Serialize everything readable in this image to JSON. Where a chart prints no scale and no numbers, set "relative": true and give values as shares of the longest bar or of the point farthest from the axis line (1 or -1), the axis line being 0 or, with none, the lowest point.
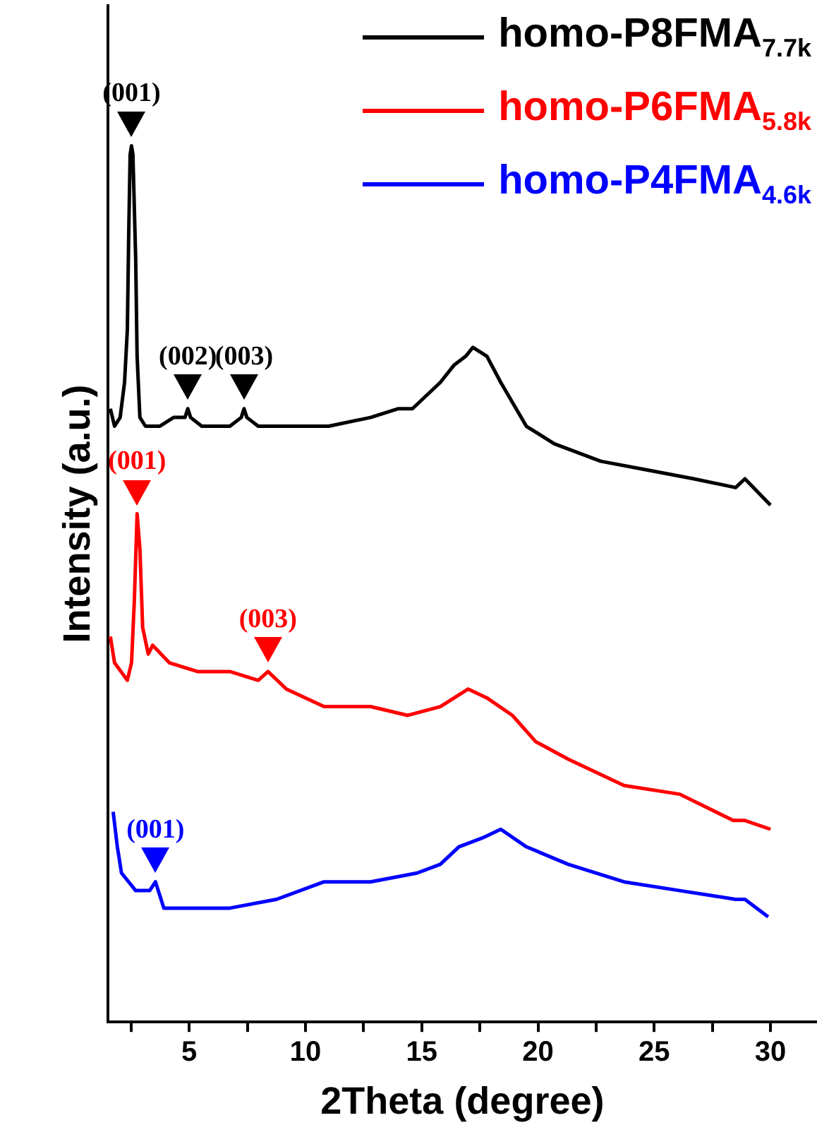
{
  "chart_data": {
    "type": "line",
    "relative": true,
    "xlabel": "2Theta (degree)",
    "ylabel": "Intensity (a.u.)",
    "xlim": [
      1.5,
      32
    ],
    "xticks": [
      {
        "value": 2.5,
        "label": null
      },
      5,
      {
        "value": 7.5,
        "label": null
      },
      10,
      {
        "value": 12.5,
        "label": null
      },
      15,
      {
        "value": 17.5,
        "label": null
      },
      20,
      {
        "value": 22.5,
        "label": null
      },
      25,
      {
        "value": 27.5,
        "label": null
      },
      30
    ],
    "grid": false,
    "legend": "top right",
    "marker": "none",
    "line_style": "solid",
    "series": [
      {
        "name": "homo-P8FMA$_{7.7k}$",
        "color": "#000000",
        "x": [
          1.61,
          1.79,
          2.03,
          2.22,
          2.34,
          2.4,
          2.46,
          2.52,
          2.58,
          2.7,
          2.76,
          2.88,
          3.12,
          3.73,
          4.33,
          4.82,
          4.94,
          5.06,
          5.54,
          6.75,
          7.24,
          7.36,
          7.48,
          7.97,
          9.18,
          11.0,
          12.8,
          14.0,
          14.6,
          15.8,
          16.4,
          16.9,
          17.2,
          17.8,
          18.4,
          19.5,
          20.7,
          22.7,
          24.7,
          26.7,
          28.5,
          28.9,
          30.0
        ],
        "values": [
          0.7,
          0.68,
          0.69,
          0.73,
          0.79,
          0.9,
          0.99,
          1,
          0.99,
          0.87,
          0.76,
          0.69,
          0.68,
          0.68,
          0.69,
          0.69,
          0.7,
          0.69,
          0.68,
          0.68,
          0.69,
          0.7,
          0.69,
          0.68,
          0.68,
          0.68,
          0.69,
          0.7,
          0.7,
          0.73,
          0.75,
          0.76,
          0.77,
          0.76,
          0.73,
          0.68,
          0.66,
          0.64,
          0.63,
          0.62,
          0.61,
          0.62,
          0.59
        ]
      },
      {
        "name": "homo-P6FMA$_{5.8k}$",
        "color": "#ff0000",
        "x": [
          1.61,
          1.79,
          2.34,
          2.52,
          2.64,
          2.76,
          2.88,
          3.0,
          3.24,
          3.43,
          4.15,
          5.36,
          6.75,
          7.97,
          8.39,
          9.18,
          10.8,
          12.8,
          14.4,
          15.8,
          17.0,
          17.8,
          18.9,
          19.9,
          21.3,
          23.7,
          26.1,
          28.4,
          28.9,
          30.0
        ],
        "values": [
          0.44,
          0.41,
          0.39,
          0.41,
          0.48,
          0.58,
          0.54,
          0.45,
          0.42,
          0.43,
          0.41,
          0.4,
          0.4,
          0.39,
          0.4,
          0.38,
          0.36,
          0.36,
          0.35,
          0.36,
          0.38,
          0.37,
          0.35,
          0.32,
          0.3,
          0.27,
          0.26,
          0.23,
          0.23,
          0.22
        ]
      },
      {
        "name": "homo-P4FMA$_{4.6k}$",
        "color": "#0000ff",
        "x": [
          1.73,
          1.91,
          2.09,
          2.7,
          3.3,
          3.55,
          3.91,
          5.36,
          6.75,
          8.75,
          10.8,
          12.8,
          14.8,
          15.8,
          16.6,
          17.6,
          18.4,
          19.5,
          21.3,
          23.7,
          26.1,
          28.5,
          28.9,
          29.9
        ],
        "values": [
          0.24,
          0.2,
          0.17,
          0.15,
          0.15,
          0.16,
          0.13,
          0.13,
          0.13,
          0.14,
          0.16,
          0.16,
          0.17,
          0.18,
          0.2,
          0.21,
          0.22,
          0.2,
          0.18,
          0.16,
          0.15,
          0.14,
          0.14,
          0.12
        ]
      }
    ],
    "annotations": [
      {
        "text": "(001)",
        "x": 2.52,
        "y": 1
      },
      {
        "text": "(002)",
        "x": 4.94,
        "y": 0.7
      },
      {
        "text": "(003)",
        "x": 7.36,
        "y": 0.7
      },
      {
        "text": "(001)",
        "x": 2.76,
        "y": 0.58
      },
      {
        "text": "(003)",
        "x": 8.39,
        "y": 0.4
      },
      {
        "text": "(001)",
        "x": 3.55,
        "y": 0.16
      }
    ]
  }
}
